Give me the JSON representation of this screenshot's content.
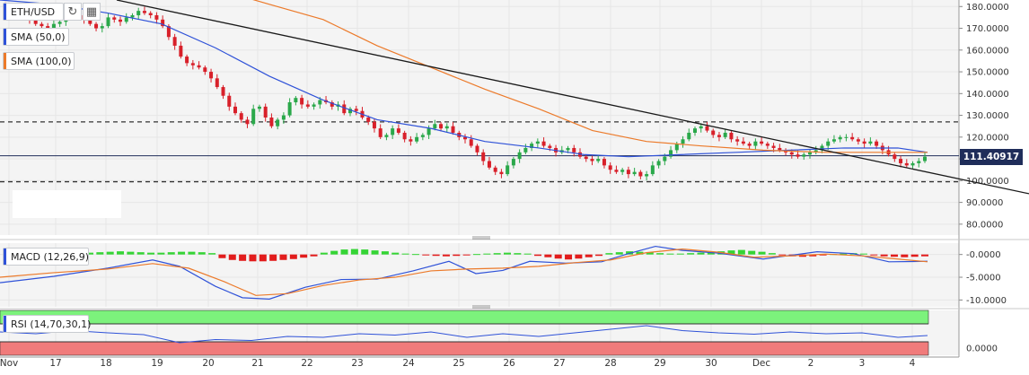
{
  "pair": {
    "label": "ETH/USD"
  },
  "toolbar": {
    "refresh_icon": "refresh-icon",
    "calendar_icon": "calendar-icon"
  },
  "indicators": {
    "sma50": {
      "label": "SMA (50,0)",
      "color": "#2f52d8"
    },
    "sma100": {
      "label": "SMA (100,0)",
      "color": "#ec7a2a"
    },
    "macd": {
      "label": "MACD (12,26,9)"
    },
    "rsi": {
      "label": "RSI (14,70,30,1)"
    }
  },
  "current_price": {
    "value": "111.40917",
    "price": 111.40917
  },
  "colors": {
    "up": "#2aa84a",
    "down": "#d8202a",
    "hist_up": "#35d435",
    "hist_down": "#e21c1c",
    "rsi_overbought": "#7cf27c",
    "rsi_oversold": "#f07b7b",
    "trendline": "#1a1a1a"
  },
  "chart_data": [
    {
      "type": "candlestick",
      "panel": "price",
      "ylim": [
        75,
        183
      ],
      "y_ticks": [
        "180.0000",
        "170.0000",
        "160.0000",
        "150.0000",
        "140.0000",
        "130.0000",
        "120.0000",
        "110.0000",
        "100.0000",
        "90.0000",
        "80.0000"
      ],
      "y_tick_values": [
        180,
        170,
        160,
        150,
        140,
        130,
        120,
        110,
        100,
        90,
        80
      ],
      "x_ticks": [
        "Nov",
        "17",
        "18",
        "19",
        "20",
        "21",
        "22",
        "23",
        "24",
        "25",
        "26",
        "27",
        "28",
        "29",
        "30",
        "Dec",
        "2",
        "3",
        "4"
      ],
      "horizontal_levels": [
        127,
        99.5
      ],
      "close": [
        180,
        178,
        176,
        175,
        174,
        172,
        171,
        170,
        172,
        173,
        175,
        178,
        176,
        174,
        172,
        170,
        171,
        175,
        174,
        173,
        175,
        176,
        178,
        177,
        176,
        174,
        171,
        166,
        162,
        157,
        154,
        153,
        152,
        150,
        147,
        143,
        139,
        134,
        131,
        128,
        126,
        133,
        134,
        129,
        125,
        128,
        130,
        136,
        138,
        135,
        134,
        135,
        137,
        136,
        134,
        135,
        131,
        133,
        132,
        129,
        127,
        124,
        120,
        121,
        124,
        122,
        119,
        118,
        120,
        121,
        124,
        126,
        124,
        125,
        122,
        120,
        119,
        116,
        113,
        109,
        106,
        104,
        103,
        107,
        110,
        113,
        115,
        117,
        118,
        116,
        115,
        113,
        114,
        115,
        113,
        111,
        110,
        109,
        110,
        107,
        105,
        104,
        105,
        103,
        104,
        102,
        103,
        107,
        109,
        111,
        114,
        117,
        119,
        122,
        124,
        125,
        123,
        121,
        120,
        122,
        119,
        118,
        117,
        116,
        118,
        117,
        116,
        115,
        114,
        113,
        112,
        111,
        112,
        113,
        114,
        116,
        118,
        119,
        120,
        120,
        119,
        118,
        117,
        118,
        116,
        114,
        112,
        110,
        108,
        107,
        108,
        109,
        111
      ],
      "series": [
        {
          "name": "SMA (50,0)",
          "color": "#2f52d8",
          "values": [
            [
              0,
              183
            ],
            [
              60,
              181
            ],
            [
              120,
              177
            ],
            [
              180,
              172
            ],
            [
              240,
              161
            ],
            [
              300,
              148
            ],
            [
              360,
              137
            ],
            [
              420,
              128
            ],
            [
              480,
              124
            ],
            [
              540,
              118
            ],
            [
              600,
              115
            ],
            [
              650,
              112
            ],
            [
              700,
              111
            ],
            [
              760,
              112
            ],
            [
              820,
              113
            ],
            [
              880,
              114
            ],
            [
              940,
              115
            ],
            [
              1000,
              115
            ],
            [
              1033,
              113
            ]
          ]
        },
        {
          "name": "SMA (100,0)",
          "color": "#ec7a2a",
          "values": [
            [
              250,
              187
            ],
            [
              300,
              181
            ],
            [
              360,
              174
            ],
            [
              420,
              162
            ],
            [
              480,
              152
            ],
            [
              540,
              142
            ],
            [
              600,
              133
            ],
            [
              660,
              123
            ],
            [
              720,
              118
            ],
            [
              780,
              116
            ],
            [
              850,
              114
            ],
            [
              920,
              113
            ],
            [
              980,
              113
            ],
            [
              1033,
              113
            ]
          ]
        },
        {
          "name": "trendline",
          "color": "#1a1a1a",
          "values": [
            [
              130,
              183
            ],
            [
              1146,
              94
            ]
          ]
        }
      ]
    },
    {
      "type": "line+histogram",
      "panel": "macd",
      "ylim": [
        -11.5,
        2.5
      ],
      "y_ticks": [
        "-0.0000",
        "-5.0000",
        "-10.0000"
      ],
      "y_tick_values": [
        0,
        -5,
        -10
      ],
      "histogram": [
        0.4,
        0.5,
        0.6,
        0.7,
        0.6,
        0.5,
        0.4,
        0.4,
        0.5,
        0.6,
        0.6,
        0.5,
        0.3,
        -0.8,
        -1.2,
        -1.4,
        -1.5,
        -1.5,
        -1.4,
        -1.2,
        -1.0,
        -0.7,
        -0.4,
        0.4,
        0.8,
        1.1,
        1.2,
        1.1,
        0.9,
        0.7,
        0.4,
        0.2,
        0.1,
        -0.2,
        -0.3,
        -0.4,
        -0.3,
        -0.2,
        0.1,
        0.2,
        0.3,
        0.4,
        0.3,
        0.2,
        -0.3,
        -0.6,
        -0.9,
        -1.1,
        -0.9,
        -0.6,
        -0.3,
        0.3,
        0.5,
        0.7,
        0.6,
        0.5,
        0.3,
        0.2,
        0.2,
        0.3,
        0.4,
        0.5,
        0.7,
        0.9,
        1.0,
        0.8,
        0.6,
        0.3,
        -0.2,
        -0.4,
        -0.5,
        -0.4,
        -0.2,
        0.1,
        0.2,
        0.3,
        0.2,
        -0.2,
        -0.4,
        -0.5,
        -0.6,
        -0.5,
        -0.4
      ],
      "series": [
        {
          "name": "MACD",
          "color": "#2f52d8",
          "values": [
            [
              0,
              -6.2
            ],
            [
              60,
              -4.8
            ],
            [
              120,
              -3
            ],
            [
              170,
              -1.2
            ],
            [
              200,
              -2.6
            ],
            [
              240,
              -7
            ],
            [
              270,
              -9.5
            ],
            [
              300,
              -9.8
            ],
            [
              340,
              -7.2
            ],
            [
              380,
              -5.5
            ],
            [
              420,
              -5.4
            ],
            [
              460,
              -3.6
            ],
            [
              500,
              -1.5
            ],
            [
              530,
              -4.2
            ],
            [
              560,
              -3.5
            ],
            [
              590,
              -1.5
            ],
            [
              630,
              -1.9
            ],
            [
              670,
              -1.6
            ],
            [
              700,
              0.2
            ],
            [
              730,
              1.8
            ],
            [
              760,
              0.9
            ],
            [
              800,
              0.3
            ],
            [
              850,
              -1
            ],
            [
              880,
              -0.2
            ],
            [
              910,
              0.6
            ],
            [
              950,
              0.2
            ],
            [
              990,
              -1.6
            ],
            [
              1033,
              -1.5
            ]
          ]
        },
        {
          "name": "Signal",
          "color": "#ec7a2a",
          "values": [
            [
              0,
              -5
            ],
            [
              60,
              -4
            ],
            [
              120,
              -3.2
            ],
            [
              170,
              -2
            ],
            [
              210,
              -3
            ],
            [
              250,
              -6
            ],
            [
              285,
              -9
            ],
            [
              320,
              -8.6
            ],
            [
              360,
              -6.8
            ],
            [
              400,
              -5.6
            ],
            [
              440,
              -5
            ],
            [
              480,
              -3.6
            ],
            [
              520,
              -3.2
            ],
            [
              560,
              -3
            ],
            [
              600,
              -2.6
            ],
            [
              640,
              -1.8
            ],
            [
              680,
              -1.2
            ],
            [
              720,
              0.4
            ],
            [
              760,
              1.2
            ],
            [
              800,
              0.5
            ],
            [
              840,
              -0.6
            ],
            [
              880,
              -0.3
            ],
            [
              920,
              0.1
            ],
            [
              960,
              -0.3
            ],
            [
              1000,
              -1
            ],
            [
              1033,
              -1.6
            ]
          ]
        }
      ]
    },
    {
      "type": "line",
      "panel": "rsi",
      "ylim": [
        0,
        100
      ],
      "y_ticks": [
        "0.0000"
      ],
      "y_tick_values": [
        0
      ],
      "overbought": 70,
      "oversold": 30,
      "series": [
        {
          "name": "RSI",
          "color": "#2f52d8",
          "values": [
            [
              0,
              52
            ],
            [
              40,
              48
            ],
            [
              80,
              55
            ],
            [
              120,
              50
            ],
            [
              160,
              46
            ],
            [
              200,
              28
            ],
            [
              240,
              35
            ],
            [
              280,
              33
            ],
            [
              320,
              42
            ],
            [
              360,
              40
            ],
            [
              400,
              48
            ],
            [
              440,
              45
            ],
            [
              480,
              52
            ],
            [
              520,
              40
            ],
            [
              560,
              48
            ],
            [
              600,
              42
            ],
            [
              640,
              50
            ],
            [
              680,
              58
            ],
            [
              720,
              66
            ],
            [
              760,
              55
            ],
            [
              800,
              50
            ],
            [
              840,
              47
            ],
            [
              880,
              52
            ],
            [
              920,
              48
            ],
            [
              960,
              50
            ],
            [
              1000,
              40
            ],
            [
              1033,
              44
            ]
          ]
        }
      ]
    }
  ]
}
